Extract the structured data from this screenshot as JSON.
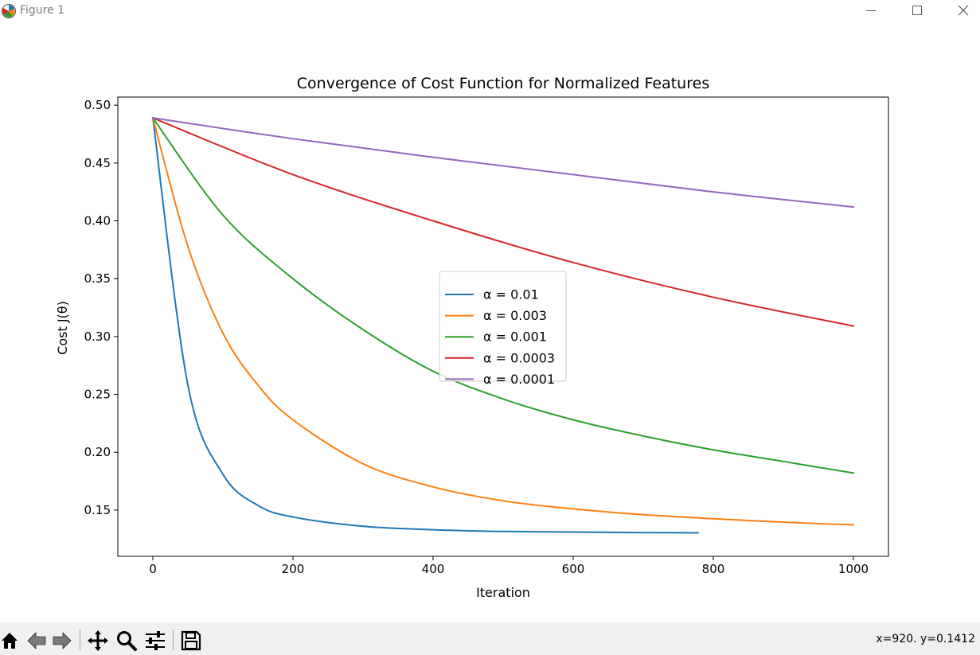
{
  "window": {
    "title": "Figure 1",
    "app_icon": "matplotlib-icon",
    "controls": [
      "minimize-icon",
      "maximize-icon",
      "close-icon"
    ]
  },
  "toolbar": {
    "buttons": [
      "home-icon",
      "back-icon",
      "forward-icon",
      "pan-icon",
      "zoom-icon",
      "configure-subplots-icon",
      "save-icon"
    ],
    "coords": "x=920. y=0.1412"
  },
  "chart_data": {
    "type": "line",
    "title": "Convergence of Cost Function for Normalized Features",
    "xlabel": "Iteration",
    "ylabel": "Cost J(θ)",
    "xlim": [
      -50,
      1050
    ],
    "ylim": [
      0.11,
      0.507
    ],
    "xticks": [
      0,
      200,
      400,
      600,
      800,
      1000
    ],
    "yticks": [
      0.15,
      0.2,
      0.25,
      0.3,
      0.35,
      0.4,
      0.45,
      0.5
    ],
    "ytick_labels": [
      "0.15",
      "0.20",
      "0.25",
      "0.30",
      "0.35",
      "0.40",
      "0.45",
      "0.50"
    ],
    "grid": false,
    "legend_position": "center",
    "series": [
      {
        "name": "α = 0.01",
        "color": "#1f77b4",
        "x": [
          0,
          50,
          100,
          150,
          200,
          300,
          400,
          500,
          600,
          700,
          778
        ],
        "y": [
          0.489,
          0.258,
          0.181,
          0.154,
          0.144,
          0.136,
          0.133,
          0.1315,
          0.131,
          0.1305,
          0.1303
        ]
      },
      {
        "name": "α = 0.003",
        "color": "#ff7f0e",
        "x": [
          0,
          50,
          100,
          150,
          200,
          300,
          400,
          500,
          600,
          700,
          800,
          900,
          1000
        ],
        "y": [
          0.489,
          0.378,
          0.303,
          0.258,
          0.228,
          0.19,
          0.17,
          0.158,
          0.151,
          0.146,
          0.1425,
          0.1395,
          0.1372
        ]
      },
      {
        "name": "α = 0.001",
        "color": "#2ca02c",
        "x": [
          0,
          100,
          200,
          300,
          400,
          500,
          600,
          700,
          800,
          900,
          1000
        ],
        "y": [
          0.489,
          0.405,
          0.35,
          0.306,
          0.27,
          0.246,
          0.228,
          0.214,
          0.202,
          0.192,
          0.182
        ]
      },
      {
        "name": "α = 0.0003",
        "color": "#d62728",
        "x": [
          0,
          200,
          400,
          600,
          800,
          1000
        ],
        "y": [
          0.489,
          0.44,
          0.4,
          0.364,
          0.334,
          0.309
        ]
      },
      {
        "name": "α = 0.0001",
        "color": "#9467bd",
        "x": [
          0,
          200,
          400,
          600,
          800,
          1000
        ],
        "y": [
          0.489,
          0.471,
          0.455,
          0.44,
          0.425,
          0.412
        ]
      }
    ]
  }
}
